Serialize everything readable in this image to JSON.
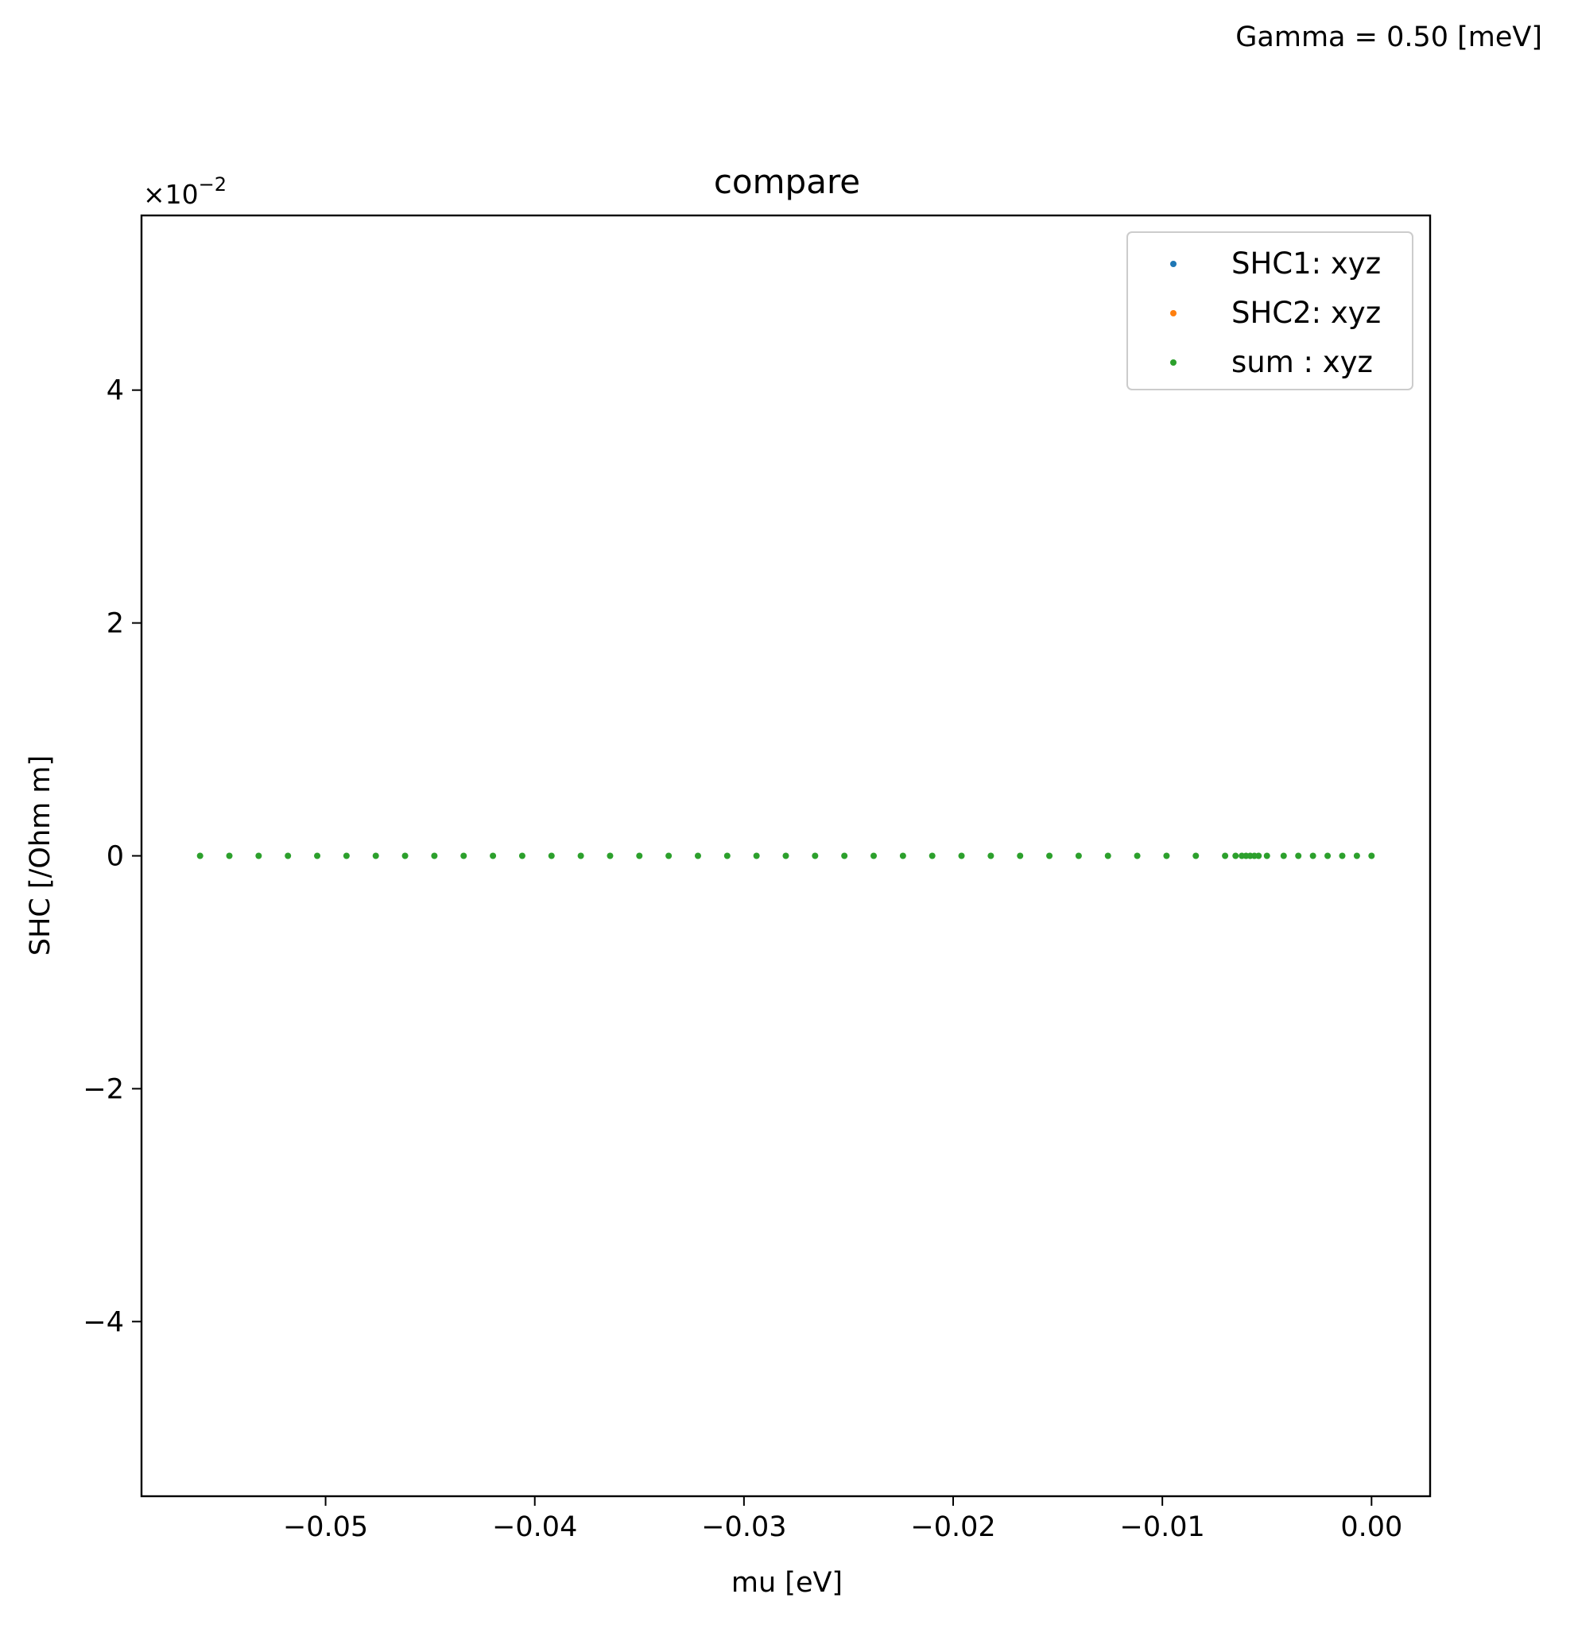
{
  "figure": {
    "annotation": "Gamma = 0.50 [meV]"
  },
  "chart_data": {
    "type": "scatter",
    "title": "compare",
    "xlabel": "mu [eV]",
    "ylabel": "SHC [/Ohm m]",
    "y_offset_text": "×10",
    "y_offset_exponent": "−2",
    "xlim": [
      -0.0588,
      0.0028
    ],
    "ylim": [
      -0.055,
      0.055
    ],
    "xticks": [
      {
        "value": -0.05,
        "label": "−0.05"
      },
      {
        "value": -0.04,
        "label": "−0.04"
      },
      {
        "value": -0.03,
        "label": "−0.03"
      },
      {
        "value": -0.02,
        "label": "−0.02"
      },
      {
        "value": -0.01,
        "label": "−0.01"
      },
      {
        "value": 0.0,
        "label": "0.00"
      }
    ],
    "yticks": [
      {
        "value": -0.04,
        "label": "−4"
      },
      {
        "value": -0.02,
        "label": "−2"
      },
      {
        "value": 0.0,
        "label": "0"
      },
      {
        "value": 0.02,
        "label": "2"
      },
      {
        "value": 0.04,
        "label": "4"
      }
    ],
    "grid": false,
    "legend_position": "top-right",
    "series": [
      {
        "name": "SHC1: xyz",
        "color": "#1f77b4",
        "x": [],
        "y": []
      },
      {
        "name": "SHC2: xyz",
        "color": "#ff7f0e",
        "x": [],
        "y": []
      },
      {
        "name": "sum : xyz",
        "color": "#2ca02c",
        "x": [
          -0.056,
          -0.0546,
          -0.0532,
          -0.0518,
          -0.0504,
          -0.049,
          -0.0476,
          -0.0462,
          -0.0448,
          -0.0434,
          -0.042,
          -0.0406,
          -0.0392,
          -0.0378,
          -0.0364,
          -0.035,
          -0.0336,
          -0.0322,
          -0.0308,
          -0.0294,
          -0.028,
          -0.0266,
          -0.0252,
          -0.0238,
          -0.0224,
          -0.021,
          -0.0196,
          -0.0182,
          -0.0168,
          -0.0154,
          -0.014,
          -0.0126,
          -0.0112,
          -0.0098,
          -0.0084,
          -0.007,
          -0.0065,
          -0.0062,
          -0.006,
          -0.0058,
          -0.0056,
          -0.0054,
          -0.005,
          -0.0042,
          -0.0035,
          -0.0028,
          -0.0021,
          -0.0014,
          -0.0007,
          0.0
        ],
        "y": [
          0,
          0,
          0,
          0,
          0,
          0,
          0,
          0,
          0,
          0,
          0,
          0,
          0,
          0,
          0,
          0,
          0,
          0,
          0,
          0,
          0,
          0,
          0,
          0,
          0,
          0,
          0,
          0,
          0,
          0,
          0,
          0,
          0,
          0,
          0,
          0,
          0,
          0,
          0,
          0,
          0,
          0,
          0,
          0,
          0,
          0,
          0,
          0,
          0,
          0
        ]
      }
    ]
  }
}
